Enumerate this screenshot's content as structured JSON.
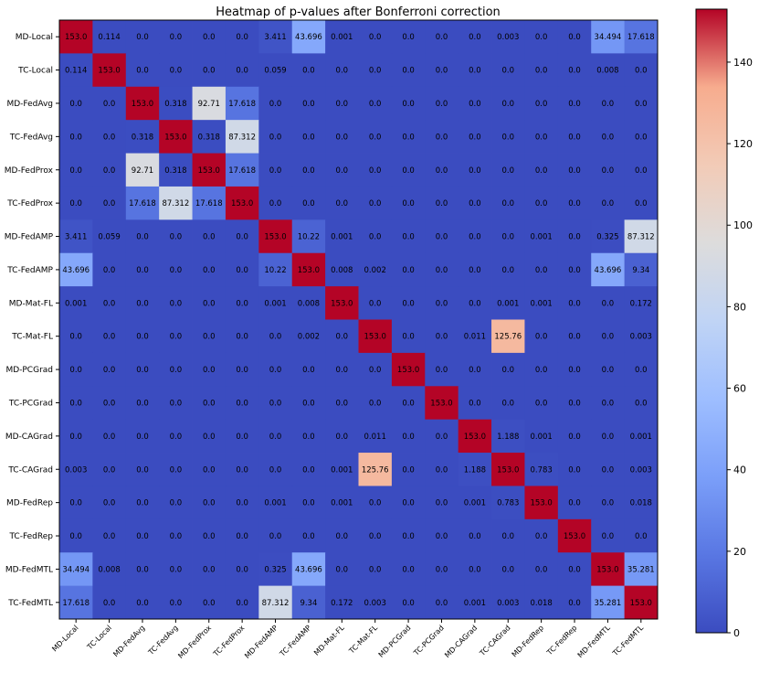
{
  "chart_data": {
    "type": "heatmap",
    "title": "Heatmap of p-values after Bonferroni correction",
    "labels": [
      "MD-Local",
      "TC-Local",
      "MD-FedAvg",
      "TC-FedAvg",
      "MD-FedProx",
      "TC-FedProx",
      "MD-FedAMP",
      "TC-FedAMP",
      "MD-Mat-FL",
      "TC-Mat-FL",
      "MD-PCGrad",
      "TC-PCGrad",
      "MD-CAGrad",
      "TC-CAGrad",
      "MD-FedRep",
      "TC-FedRep",
      "MD-FedMTL",
      "TC-FedMTL"
    ],
    "cell_text": [
      [
        "153.0",
        "0.114",
        "0.0",
        "0.0",
        "0.0",
        "0.0",
        "3.411",
        "43.696",
        "0.001",
        "0.0",
        "0.0",
        "0.0",
        "0.0",
        "0.003",
        "0.0",
        "0.0",
        "34.494",
        "17.618"
      ],
      [
        "0.114",
        "153.0",
        "0.0",
        "0.0",
        "0.0",
        "0.0",
        "0.059",
        "0.0",
        "0.0",
        "0.0",
        "0.0",
        "0.0",
        "0.0",
        "0.0",
        "0.0",
        "0.0",
        "0.008",
        "0.0"
      ],
      [
        "0.0",
        "0.0",
        "153.0",
        "0.318",
        "92.71",
        "17.618",
        "0.0",
        "0.0",
        "0.0",
        "0.0",
        "0.0",
        "0.0",
        "0.0",
        "0.0",
        "0.0",
        "0.0",
        "0.0",
        "0.0"
      ],
      [
        "0.0",
        "0.0",
        "0.318",
        "153.0",
        "0.318",
        "87.312",
        "0.0",
        "0.0",
        "0.0",
        "0.0",
        "0.0",
        "0.0",
        "0.0",
        "0.0",
        "0.0",
        "0.0",
        "0.0",
        "0.0"
      ],
      [
        "0.0",
        "0.0",
        "92.71",
        "0.318",
        "153.0",
        "17.618",
        "0.0",
        "0.0",
        "0.0",
        "0.0",
        "0.0",
        "0.0",
        "0.0",
        "0.0",
        "0.0",
        "0.0",
        "0.0",
        "0.0"
      ],
      [
        "0.0",
        "0.0",
        "17.618",
        "87.312",
        "17.618",
        "153.0",
        "0.0",
        "0.0",
        "0.0",
        "0.0",
        "0.0",
        "0.0",
        "0.0",
        "0.0",
        "0.0",
        "0.0",
        "0.0",
        "0.0"
      ],
      [
        "3.411",
        "0.059",
        "0.0",
        "0.0",
        "0.0",
        "0.0",
        "153.0",
        "10.22",
        "0.001",
        "0.0",
        "0.0",
        "0.0",
        "0.0",
        "0.0",
        "0.001",
        "0.0",
        "0.325",
        "87.312"
      ],
      [
        "43.696",
        "0.0",
        "0.0",
        "0.0",
        "0.0",
        "0.0",
        "10.22",
        "153.0",
        "0.008",
        "0.002",
        "0.0",
        "0.0",
        "0.0",
        "0.0",
        "0.0",
        "0.0",
        "43.696",
        "9.34"
      ],
      [
        "0.001",
        "0.0",
        "0.0",
        "0.0",
        "0.0",
        "0.0",
        "0.001",
        "0.008",
        "153.0",
        "0.0",
        "0.0",
        "0.0",
        "0.0",
        "0.001",
        "0.001",
        "0.0",
        "0.0",
        "0.172"
      ],
      [
        "0.0",
        "0.0",
        "0.0",
        "0.0",
        "0.0",
        "0.0",
        "0.0",
        "0.002",
        "0.0",
        "153.0",
        "0.0",
        "0.0",
        "0.011",
        "125.76",
        "0.0",
        "0.0",
        "0.0",
        "0.003"
      ],
      [
        "0.0",
        "0.0",
        "0.0",
        "0.0",
        "0.0",
        "0.0",
        "0.0",
        "0.0",
        "0.0",
        "0.0",
        "153.0",
        "0.0",
        "0.0",
        "0.0",
        "0.0",
        "0.0",
        "0.0",
        "0.0"
      ],
      [
        "0.0",
        "0.0",
        "0.0",
        "0.0",
        "0.0",
        "0.0",
        "0.0",
        "0.0",
        "0.0",
        "0.0",
        "0.0",
        "153.0",
        "0.0",
        "0.0",
        "0.0",
        "0.0",
        "0.0",
        "0.0"
      ],
      [
        "0.0",
        "0.0",
        "0.0",
        "0.0",
        "0.0",
        "0.0",
        "0.0",
        "0.0",
        "0.0",
        "0.011",
        "0.0",
        "0.0",
        "153.0",
        "1.188",
        "0.001",
        "0.0",
        "0.0",
        "0.001"
      ],
      [
        "0.003",
        "0.0",
        "0.0",
        "0.0",
        "0.0",
        "0.0",
        "0.0",
        "0.0",
        "0.001",
        "125.76",
        "0.0",
        "0.0",
        "1.188",
        "153.0",
        "0.783",
        "0.0",
        "0.0",
        "0.003"
      ],
      [
        "0.0",
        "0.0",
        "0.0",
        "0.0",
        "0.0",
        "0.0",
        "0.001",
        "0.0",
        "0.001",
        "0.0",
        "0.0",
        "0.0",
        "0.001",
        "0.783",
        "153.0",
        "0.0",
        "0.0",
        "0.018"
      ],
      [
        "0.0",
        "0.0",
        "0.0",
        "0.0",
        "0.0",
        "0.0",
        "0.0",
        "0.0",
        "0.0",
        "0.0",
        "0.0",
        "0.0",
        "0.0",
        "0.0",
        "0.0",
        "153.0",
        "0.0",
        "0.0"
      ],
      [
        "34.494",
        "0.008",
        "0.0",
        "0.0",
        "0.0",
        "0.0",
        "0.325",
        "43.696",
        "0.0",
        "0.0",
        "0.0",
        "0.0",
        "0.0",
        "0.0",
        "0.0",
        "0.0",
        "153.0",
        "35.281"
      ],
      [
        "17.618",
        "0.0",
        "0.0",
        "0.0",
        "0.0",
        "0.0",
        "87.312",
        "9.34",
        "0.172",
        "0.003",
        "0.0",
        "0.0",
        "0.001",
        "0.003",
        "0.018",
        "0.0",
        "35.281",
        "153.0"
      ]
    ],
    "vmin": 0,
    "vmax": 153,
    "colormap": "coolwarm",
    "colorbar": {
      "ticks": [
        0,
        20,
        40,
        60,
        80,
        100,
        120,
        140
      ],
      "tick_labels": [
        "0",
        "20",
        "40",
        "60",
        "80",
        "100",
        "120",
        "140"
      ]
    },
    "grid": false
  }
}
